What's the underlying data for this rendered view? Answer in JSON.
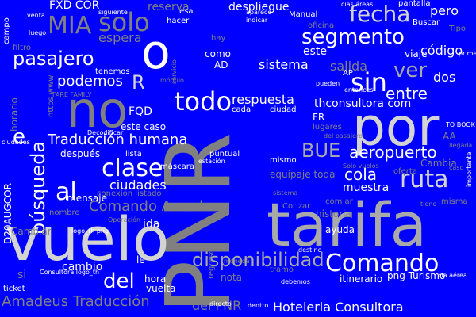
{
  "cloud": {
    "background": "#0000ff",
    "palette": [
      "#ffffff",
      "#d3d3d3",
      "#a9a9a9",
      "#808080"
    ],
    "words": [
      {
        "text": "PNR",
        "color": 3
      },
      {
        "text": "tarifa",
        "color": 2
      },
      {
        "text": "vuelo",
        "color": 1
      },
      {
        "text": "por",
        "color": 1
      },
      {
        "text": "no",
        "color": 3
      },
      {
        "text": "o",
        "color": 0
      },
      {
        "text": "segmento",
        "color": 0
      },
      {
        "text": "fecha",
        "color": 1
      },
      {
        "text": "solo",
        "color": 3
      },
      {
        "text": "MIA",
        "color": 3
      },
      {
        "text": "pasajero",
        "color": 0
      },
      {
        "text": "sin",
        "color": 0
      },
      {
        "text": "ver",
        "color": 2
      },
      {
        "text": "todo",
        "color": 0
      },
      {
        "text": "búsqueda",
        "color": 0
      },
      {
        "text": "clase",
        "color": 0
      },
      {
        "text": "Traducción humana",
        "color": 0
      },
      {
        "text": "ruta",
        "color": 1
      },
      {
        "text": "BUE",
        "color": 2
      },
      {
        "text": "aeropuerto",
        "color": 0
      },
      {
        "text": "disponibilidad",
        "color": 2
      },
      {
        "text": "Comando",
        "color": 0
      },
      {
        "text": "Comando Amadeus",
        "color": 3
      },
      {
        "text": "Amadeus Traducción",
        "color": 3
      },
      {
        "text": "del PNR",
        "color": 3
      },
      {
        "text": "Hoteleria Consultora",
        "color": 0
      },
      {
        "text": "e",
        "color": 0
      },
      {
        "text": "al",
        "color": 0
      },
      {
        "text": "del",
        "color": 0
      },
      {
        "text": "R",
        "color": 1
      },
      {
        "text": "podemos",
        "color": 0
      },
      {
        "text": "ciudades",
        "color": 0
      },
      {
        "text": "respuesta",
        "color": 0
      },
      {
        "text": "thconsultora com",
        "color": 0
      },
      {
        "text": "sistema",
        "color": 0
      },
      {
        "text": "entre",
        "color": 0
      },
      {
        "text": "salida",
        "color": 3
      },
      {
        "text": "código",
        "color": 0
      },
      {
        "text": "dos",
        "color": 0
      },
      {
        "text": "cola",
        "color": 0
      },
      {
        "text": "muestra",
        "color": 0
      },
      {
        "text": "espera",
        "color": 3
      },
      {
        "text": "FXD COR",
        "color": 0
      },
      {
        "text": "reserva",
        "color": 3
      },
      {
        "text": "despliegue",
        "color": 0
      },
      {
        "text": "pero",
        "color": 0
      },
      {
        "text": "FQD",
        "color": 0
      },
      {
        "text": "itinerario",
        "color": 0
      },
      {
        "text": "cambio",
        "color": 0
      },
      {
        "text": "hora",
        "color": 0
      },
      {
        "text": "ida",
        "color": 0
      },
      {
        "text": "D20AUGCOR",
        "color": 0
      },
      {
        "text": "equipaje toda",
        "color": 3
      },
      {
        "text": "AA",
        "color": 3
      },
      {
        "text": "Cambiar",
        "color": 3
      },
      {
        "text": "Cambia",
        "color": 3
      },
      {
        "text": "historia",
        "color": 3
      },
      {
        "text": "ayuda",
        "color": 0
      },
      {
        "text": "nota",
        "color": 3
      },
      {
        "text": "vuelta",
        "color": 0
      },
      {
        "text": "mensaje",
        "color": 0
      },
      {
        "text": "este caso",
        "color": 0
      },
      {
        "text": "después",
        "color": 0
      },
      {
        "text": "lista",
        "color": 0
      },
      {
        "text": "puntual",
        "color": 0
      },
      {
        "text": "máscara",
        "color": 0
      },
      {
        "text": "como",
        "color": 0
      },
      {
        "text": "AD",
        "color": 0
      },
      {
        "text": "este",
        "color": 0
      },
      {
        "text": "cada",
        "color": 0
      },
      {
        "text": "ciudad",
        "color": 0
      },
      {
        "text": "FR",
        "color": 0
      },
      {
        "text": "lugares",
        "color": 3
      },
      {
        "text": "hay",
        "color": 3
      },
      {
        "text": "Manual",
        "color": 0
      },
      {
        "text": "oficina",
        "color": 3
      },
      {
        "text": "Buscar",
        "color": 0
      },
      {
        "text": "viaje",
        "color": 0
      },
      {
        "text": "Tipo",
        "color": 3
      },
      {
        "text": "pantalla",
        "color": 0
      },
      {
        "text": "esa",
        "color": 0
      },
      {
        "text": "hacer",
        "color": 0
      },
      {
        "text": "si",
        "color": 3
      },
      {
        "text": "le",
        "color": 0
      },
      {
        "text": "directo",
        "color": 0
      },
      {
        "text": "ticket",
        "color": 0
      },
      {
        "text": "Consultora logo_th",
        "color": 0
      },
      {
        "text": "png Turismo",
        "color": 0
      },
      {
        "text": "dentro",
        "color": 0
      },
      {
        "text": "regreso",
        "color": 3
      },
      {
        "text": "tramo",
        "color": 3
      },
      {
        "text": "Cotizar",
        "color": 3
      },
      {
        "text": "mismo",
        "color": 0
      },
      {
        "text": "oferta",
        "color": 3
      },
      {
        "text": "tenemos",
        "color": 0
      },
      {
        "text": "campo",
        "color": 0
      },
      {
        "text": "siguiente",
        "color": 0
      },
      {
        "text": "cias áreas",
        "color": 0
      },
      {
        "text": "Solo vuelos",
        "color": 3
      },
      {
        "text": "conexión listado",
        "color": 3
      },
      {
        "text": "nombre",
        "color": 3
      },
      {
        "text": "logo_th png",
        "color": 0
      },
      {
        "text": "misma",
        "color": 3
      },
      {
        "text": "ciudades",
        "color": 0
      },
      {
        "text": "caso",
        "color": 3
      },
      {
        "text": "llegada",
        "color": 3
      },
      {
        "text": "TO BOOK",
        "color": 0
      },
      {
        "text": "FARE FAMILY",
        "color": 3
      },
      {
        "text": "https www",
        "color": 3
      },
      {
        "text": "horario",
        "color": 3
      },
      {
        "text": "filtro",
        "color": 3
      },
      {
        "text": "Decodificar",
        "color": 0
      },
      {
        "text": "Operación",
        "color": 3
      },
      {
        "text": "destino",
        "color": 0
      },
      {
        "text": "AP",
        "color": 0
      },
      {
        "text": "pueden",
        "color": 0
      },
      {
        "text": "entonces",
        "color": 0
      },
      {
        "text": "módulo",
        "color": 3
      },
      {
        "text": "sistema",
        "color": 3
      },
      {
        "text": "moneda",
        "color": 3
      },
      {
        "text": "debemos",
        "color": 0
      },
      {
        "text": "del pasajero",
        "color": 3
      },
      {
        "text": "primer",
        "color": 0
      },
      {
        "text": "importante",
        "color": 0
      },
      {
        "text": "cia aérea",
        "color": 0
      },
      {
        "text": "tiene",
        "color": 3
      },
      {
        "text": "com ar",
        "color": 3
      },
      {
        "text": "servicio",
        "color": 3
      },
      {
        "text": "estación",
        "color": 0
      },
      {
        "text": "venta",
        "color": 0
      },
      {
        "text": "luego",
        "color": 0
      },
      {
        "text": "aparece",
        "color": 0
      },
      {
        "text": "indicar",
        "color": 0
      }
    ]
  }
}
